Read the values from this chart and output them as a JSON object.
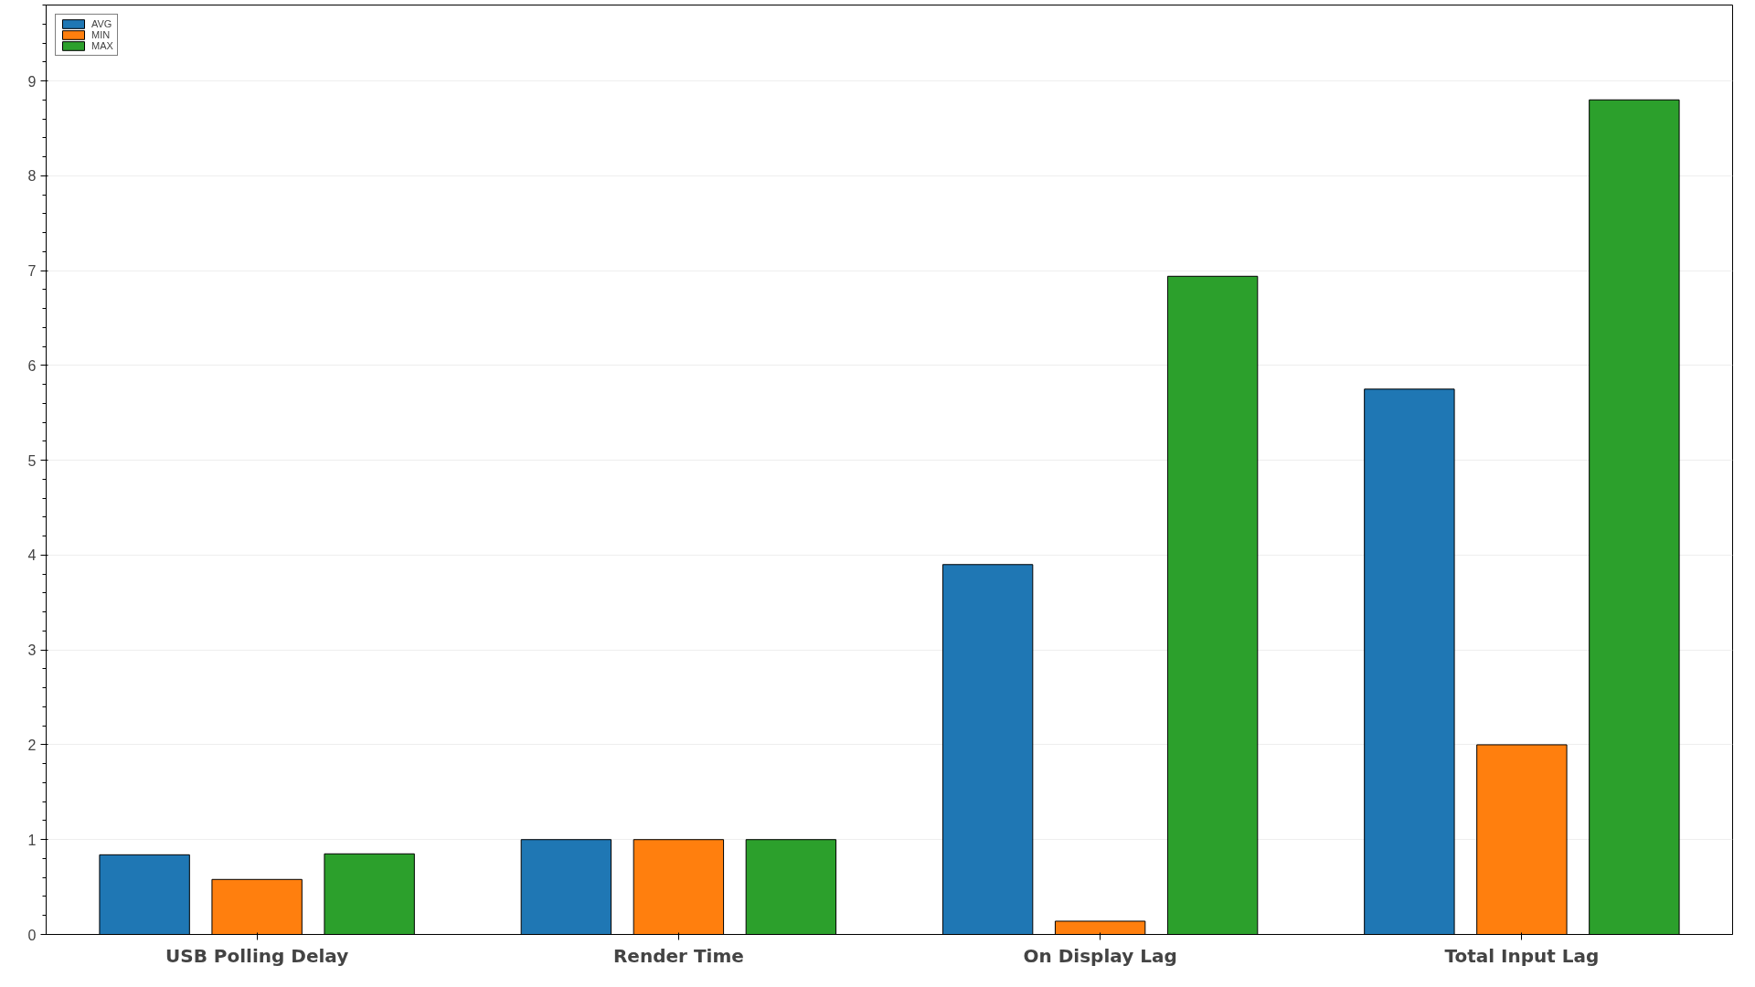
{
  "chart_data": {
    "type": "bar",
    "categories": [
      "USB Polling Delay",
      "Render Time",
      "On Display Lag",
      "Total Input Lag"
    ],
    "series": [
      {
        "name": "AVG",
        "color": "#1f77b4",
        "values": [
          0.84,
          1.0,
          3.9,
          5.75
        ]
      },
      {
        "name": "MIN",
        "color": "#ff7f0e",
        "values": [
          0.58,
          1.0,
          0.14,
          2.0
        ]
      },
      {
        "name": "MAX",
        "color": "#2ca02c",
        "values": [
          0.85,
          1.0,
          6.94,
          8.8
        ]
      }
    ],
    "ylim": [
      0,
      9.8
    ],
    "yticks": [
      0,
      1,
      2,
      3,
      4,
      5,
      6,
      7,
      8,
      9
    ],
    "grid": "y",
    "legend": "top left"
  }
}
